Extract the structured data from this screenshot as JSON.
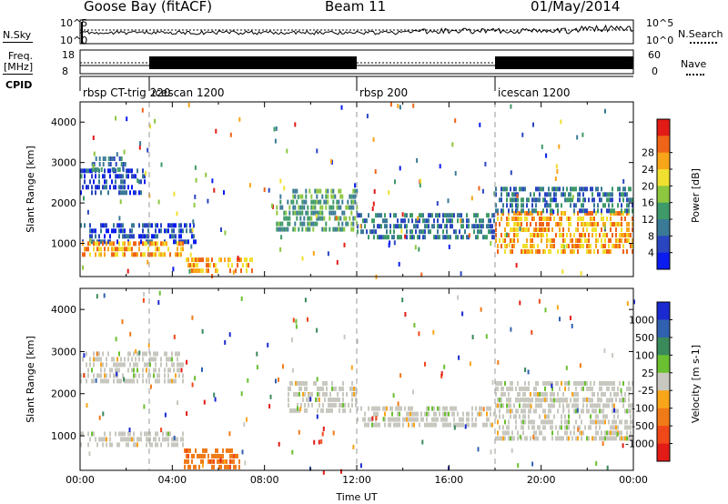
{
  "header": {
    "station": "Goose Bay (fitACF)",
    "beam": "Beam 11",
    "date": "01/May/2014"
  },
  "aux": {
    "nsky_label": "N.Sky",
    "nsearch_label": "N.Search",
    "freq_label": "Freq.",
    "freq_unit": "[MHz]",
    "nave_label": "Nave",
    "cpid_label": "CPID",
    "nsky_ticks": [
      "10^5",
      "10^0"
    ],
    "nsearch_ticks": [
      "10^5",
      "10^0"
    ],
    "freq_ticks": [
      "18",
      "8"
    ],
    "nave_ticks": [
      "60",
      "0"
    ]
  },
  "cpid_segments": [
    {
      "start": 0,
      "end": 3,
      "label": "rbsp CT-trig 220"
    },
    {
      "start": 3,
      "end": 12,
      "label": "icescan 1200"
    },
    {
      "start": 12,
      "end": 18,
      "label": "rbsp 200"
    },
    {
      "start": 18,
      "end": 24,
      "label": "icescan 1200"
    }
  ],
  "chart_data": [
    {
      "type": "heatmap",
      "title": "",
      "ylabel": "Slant Range [km]",
      "xlabel": "",
      "xlim": [
        0,
        24
      ],
      "ylim": [
        180,
        4500
      ],
      "yticks": [
        "1000",
        "2000",
        "3000",
        "4000"
      ],
      "colorbar": {
        "label": "Power [dB]",
        "ticks": [
          "4",
          "8",
          "12",
          "16",
          "20",
          "24",
          "28"
        ],
        "colors": [
          "#0a1cf0",
          "#2a45c0",
          "#3a7a96",
          "#3e9a68",
          "#8dc63f",
          "#f0e030",
          "#f9a51a",
          "#f06418",
          "#e21b16"
        ]
      },
      "bands": [
        {
          "t0": 0.0,
          "t1": 2.8,
          "r0": 2300,
          "r1": 2850,
          "c": 1
        },
        {
          "t0": 0.5,
          "t1": 2.0,
          "r0": 2850,
          "r1": 3150,
          "c": 2
        },
        {
          "t0": 0.0,
          "t1": 5.0,
          "r0": 1050,
          "r1": 1500,
          "c": 1
        },
        {
          "t0": 0.0,
          "t1": 4.5,
          "r0": 650,
          "r1": 1050,
          "c": 6
        },
        {
          "t0": 4.5,
          "t1": 7.5,
          "r0": 300,
          "r1": 650,
          "c": 6
        },
        {
          "t0": 8.5,
          "t1": 12.0,
          "r0": 1400,
          "r1": 2350,
          "c": 3
        },
        {
          "t0": 12.0,
          "t1": 18.0,
          "r0": 1100,
          "r1": 1750,
          "c": 2
        },
        {
          "t0": 18.0,
          "t1": 24.0,
          "r0": 800,
          "r1": 1800,
          "c": 6
        },
        {
          "t0": 18.0,
          "t1": 24.0,
          "r0": 1800,
          "r1": 2400,
          "c": 2
        }
      ]
    },
    {
      "type": "heatmap",
      "title": "",
      "ylabel": "Slant Range [km]",
      "xlabel": "Time UT",
      "xlim": [
        0,
        24
      ],
      "ylim": [
        180,
        4500
      ],
      "xticks": [
        "00:00",
        "04:00",
        "08:00",
        "12:00",
        "16:00",
        "20:00",
        "00:00"
      ],
      "yticks": [
        "1000",
        "2000",
        "3000",
        "4000"
      ],
      "colorbar": {
        "label": "Velocity [m s-1]",
        "ticks": [
          "1000",
          "500",
          "100",
          "25",
          "-25",
          "-100",
          "-500",
          "-1000"
        ],
        "colors": [
          "#1a2ad0",
          "#3060b0",
          "#3a8a5a",
          "#6ac030",
          "#c8c8c0",
          "#f9a51a",
          "#f07a18",
          "#f04818",
          "#e21b16"
        ]
      },
      "bands": [
        {
          "t0": 0.0,
          "t1": 4.5,
          "r0": 2250,
          "r1": 3000,
          "c": 4
        },
        {
          "t0": 0.0,
          "t1": 4.5,
          "r0": 800,
          "r1": 1100,
          "c": 4
        },
        {
          "t0": 4.5,
          "t1": 7.0,
          "r0": 300,
          "r1": 700,
          "c": 6
        },
        {
          "t0": 9.0,
          "t1": 12.0,
          "r0": 1600,
          "r1": 2300,
          "c": 4
        },
        {
          "t0": 12.0,
          "t1": 18.0,
          "r0": 1300,
          "r1": 1700,
          "c": 4
        },
        {
          "t0": 18.0,
          "t1": 24.0,
          "r0": 900,
          "r1": 1900,
          "c": 4
        },
        {
          "t0": 18.0,
          "t1": 24.0,
          "r0": 1900,
          "r1": 2300,
          "c": 4
        }
      ]
    }
  ]
}
